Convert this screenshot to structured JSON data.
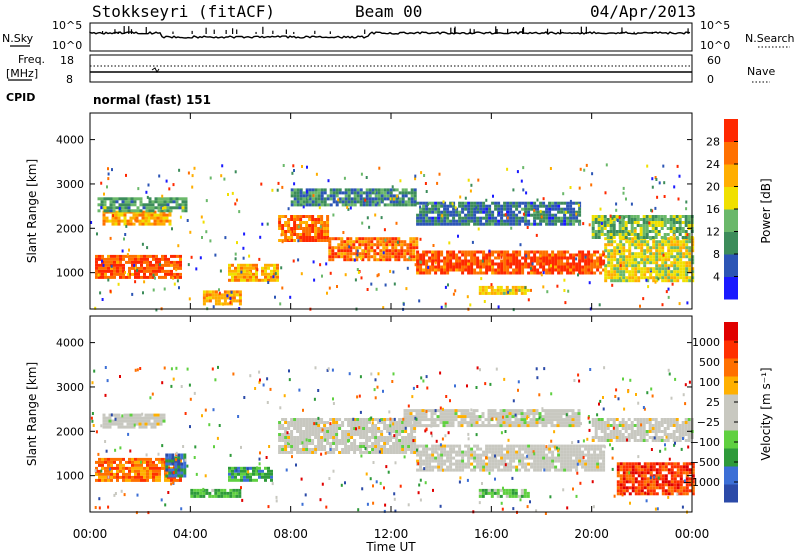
{
  "header": {
    "station": "Stokkseyri (fitACF)",
    "beam": "Beam 00",
    "date": "04/Apr/2013"
  },
  "strip_left_labels": {
    "nsky": "N.Sky",
    "freq": "Freq.",
    "mhz": "[MHz]",
    "cpid": "CPID"
  },
  "strip_right_labels": {
    "nsearch": "N.Search",
    "nave": "Nave"
  },
  "noise_axis": {
    "top": "10^5",
    "bottom": "10^0",
    "right_top": "10^5",
    "right_bottom": "10^0"
  },
  "freq_axis": {
    "left_top": "18",
    "left_bottom": "8",
    "right_top": "60",
    "right_bottom": "0"
  },
  "cpid_text": "normal (fast) 151",
  "chart_data": [
    {
      "type": "heatmap",
      "panel": "power",
      "ylabel": "Slant Range [km]",
      "xlabel": "",
      "x_ticks": [
        "00:00",
        "04:00",
        "08:00",
        "12:00",
        "16:00",
        "20:00",
        "00:00"
      ],
      "x_range_hours": [
        0,
        24
      ],
      "y_ticks": [
        1000,
        2000,
        3000,
        4000
      ],
      "ylim": [
        180,
        4600
      ],
      "colorbar": {
        "label": "Power [dB]",
        "ticks": [
          "4",
          "8",
          "12",
          "16",
          "20",
          "24",
          "28"
        ],
        "colors": [
          "#1a1aff",
          "#2c55b5",
          "#3c8c5a",
          "#6ab86a",
          "#f0e000",
          "#ffae00",
          "#ff7000",
          "#ff2800"
        ]
      },
      "bands": [
        {
          "t0": 0.2,
          "t1": 3.6,
          "r0": 900,
          "r1": 1400,
          "level": 6.5
        },
        {
          "t0": 0.5,
          "t1": 3.2,
          "r0": 2100,
          "r1": 2400,
          "level": 5
        },
        {
          "t0": 0.3,
          "t1": 3.8,
          "r0": 2400,
          "r1": 2700,
          "level": 2.5
        },
        {
          "t0": 4.5,
          "t1": 6.0,
          "r0": 300,
          "r1": 600,
          "level": 5
        },
        {
          "t0": 5.5,
          "t1": 7.5,
          "r0": 800,
          "r1": 1200,
          "level": 5
        },
        {
          "t0": 7.5,
          "t1": 9.5,
          "r0": 1700,
          "r1": 2300,
          "level": 6
        },
        {
          "t0": 9.5,
          "t1": 13.0,
          "r0": 1300,
          "r1": 1800,
          "level": 6
        },
        {
          "t0": 13.0,
          "t1": 20.5,
          "r0": 1000,
          "r1": 1500,
          "level": 6.5
        },
        {
          "t0": 8.0,
          "t1": 13.0,
          "r0": 2500,
          "r1": 2900,
          "level": 2
        },
        {
          "t0": 13.0,
          "t1": 19.5,
          "r0": 2100,
          "r1": 2600,
          "level": 1.5
        },
        {
          "t0": 15.5,
          "t1": 17.5,
          "r0": 500,
          "r1": 700,
          "level": 4.5
        },
        {
          "t0": 20.5,
          "t1": 24.0,
          "r0": 800,
          "r1": 1800,
          "level": 4
        },
        {
          "t0": 20.0,
          "t1": 24.0,
          "r0": 1800,
          "r1": 2300,
          "level": 3
        }
      ]
    },
    {
      "type": "heatmap",
      "panel": "velocity",
      "ylabel": "Slant Range [km]",
      "xlabel": "Time UT",
      "x_ticks": [
        "00:00",
        "04:00",
        "08:00",
        "12:00",
        "16:00",
        "20:00",
        "00:00"
      ],
      "x_range_hours": [
        0,
        24
      ],
      "y_ticks": [
        1000,
        2000,
        3000,
        4000
      ],
      "ylim": [
        180,
        4600
      ],
      "colorbar": {
        "label": "Velocity [m s⁻¹]",
        "ticks": [
          "1000",
          "500",
          "100",
          "25",
          "−25",
          "−100",
          "−500",
          "−1000"
        ],
        "colors": [
          "#2b4aa8",
          "#3c6fd6",
          "#2e9a3a",
          "#5fd040",
          "#c8c8c0",
          "#c8c8c0",
          "#ffb000",
          "#ff7000",
          "#ff3000",
          "#e00000"
        ]
      },
      "bands": [
        {
          "t0": 0.2,
          "t1": 3.6,
          "r0": 900,
          "r1": 1400,
          "level": 7
        },
        {
          "t0": 0.5,
          "t1": 3.0,
          "r0": 2100,
          "r1": 2400,
          "level": 4.5
        },
        {
          "t0": 3.0,
          "t1": 3.8,
          "r0": 1000,
          "r1": 1500,
          "level": 1
        },
        {
          "t0": 4.0,
          "t1": 6.0,
          "r0": 500,
          "r1": 700,
          "level": 2.5
        },
        {
          "t0": 5.5,
          "t1": 7.2,
          "r0": 900,
          "r1": 1200,
          "level": 2
        },
        {
          "t0": 7.5,
          "t1": 13.0,
          "r0": 1500,
          "r1": 2300,
          "level": 4.5
        },
        {
          "t0": 13.0,
          "t1": 20.5,
          "r0": 1100,
          "r1": 1700,
          "level": 4.5
        },
        {
          "t0": 12.5,
          "t1": 19.5,
          "r0": 2100,
          "r1": 2500,
          "level": 4.5
        },
        {
          "t0": 15.5,
          "t1": 17.5,
          "r0": 500,
          "r1": 700,
          "level": 3
        },
        {
          "t0": 21.0,
          "t1": 24.0,
          "r0": 600,
          "r1": 1300,
          "level": 8
        },
        {
          "t0": 20.0,
          "t1": 24.0,
          "r0": 1800,
          "r1": 2300,
          "level": 4.5
        }
      ]
    }
  ]
}
